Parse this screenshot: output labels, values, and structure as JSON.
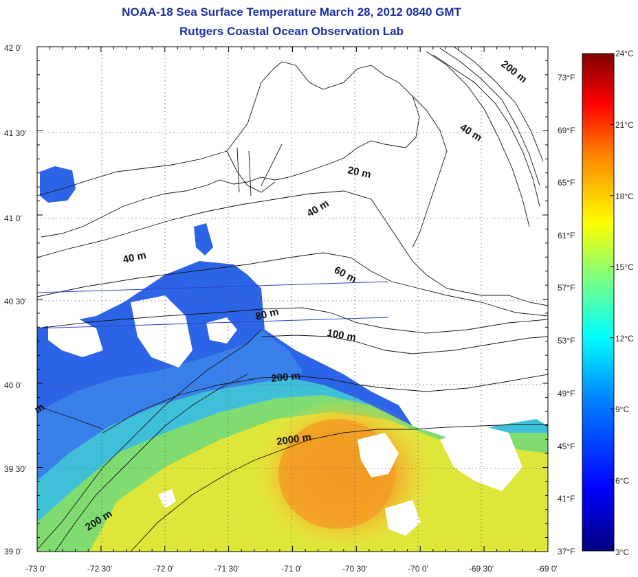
{
  "title": "NOAA-18 Sea Surface Temperature March 28, 2012 0840 GMT",
  "subtitle": "Rutgers Coastal Ocean Observation Lab",
  "lon_labels": [
    "-73 0'",
    "-72 30'",
    "-72 0'",
    "-71 30'",
    "-71 0'",
    "-70 30'",
    "-70 0'",
    "-69 30'",
    "-69 0'"
  ],
  "lat_labels": [
    "42 0'",
    "41 30'",
    "41 0'",
    "40 30'",
    "40 0'",
    "39 30'",
    "39 0'"
  ],
  "fahrenheit_labels": [
    "73°F",
    "69°F",
    "65°F",
    "61°F",
    "57°F",
    "53°F",
    "49°F",
    "45°F",
    "41°F",
    "37°F"
  ],
  "celsius_labels": [
    "24°C",
    "21°C",
    "18°C",
    "15°C",
    "12°C",
    "9°C",
    "6°C",
    "3°C"
  ],
  "depth_labels": [
    "200 m",
    "40 m",
    "20 m",
    "40 m",
    "40 m",
    "60 m",
    "80 m",
    "100 m",
    "200 m",
    "2000 m",
    "200 m",
    "m"
  ],
  "colorbar": {
    "min_c": 3,
    "max_c": 24,
    "colors": [
      "#00007f",
      "#0000ff",
      "#007fff",
      "#00ffff",
      "#7fff7f",
      "#ffff00",
      "#ff7f00",
      "#ff0000",
      "#7f0000"
    ]
  }
}
